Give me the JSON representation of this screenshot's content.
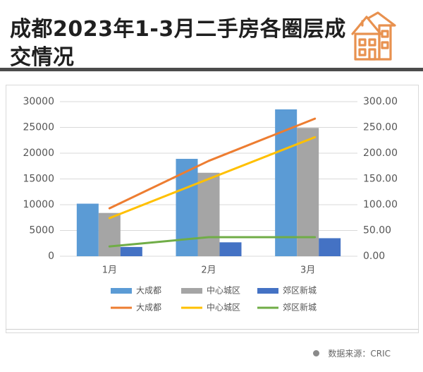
{
  "title": "成都2023年1-3月二手房各圈层成交情况",
  "source": "数据来源：CRIC",
  "icon": "house-icon",
  "colors": {
    "accent": "#e8914f",
    "bar_core": "#5b9bd5",
    "bar_center": "#a5a5a5",
    "bar_suburb": "#4472c4",
    "line_core": "#ed7d31",
    "line_center": "#ffc000",
    "line_suburb": "#70ad47"
  },
  "chart_data": {
    "type": "bar",
    "categories": [
      "1月",
      "2月",
      "3月"
    ],
    "y_left": {
      "range": [
        0,
        30000
      ],
      "ticks": [
        "0",
        "5000",
        "10000",
        "15000",
        "20000",
        "25000",
        "30000"
      ]
    },
    "y_right": {
      "range": [
        0,
        300
      ],
      "ticks": [
        "0.00",
        "50.00",
        "100.00",
        "150.00",
        "200.00",
        "250.00",
        "300.00"
      ]
    },
    "series": [
      {
        "name": "大成都",
        "type": "bar",
        "axis": "left",
        "values": [
          10200,
          18900,
          28500
        ]
      },
      {
        "name": "中心城区",
        "type": "bar",
        "axis": "left",
        "values": [
          8400,
          16200,
          24900
        ]
      },
      {
        "name": "郊区新城",
        "type": "bar",
        "axis": "left",
        "values": [
          1800,
          2700,
          3500
        ]
      },
      {
        "name": "大成都",
        "type": "line",
        "axis": "right",
        "values": [
          93,
          185,
          267
        ]
      },
      {
        "name": "中心城区",
        "type": "line",
        "axis": "right",
        "values": [
          74,
          150,
          231
        ]
      },
      {
        "name": "郊区新城",
        "type": "line",
        "axis": "right",
        "values": [
          19,
          37,
          37
        ]
      }
    ],
    "grid": true,
    "legend": "bottom"
  }
}
